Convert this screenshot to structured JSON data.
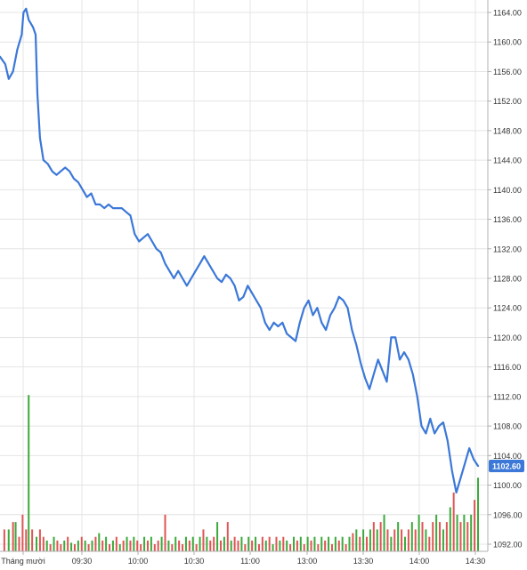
{
  "chart_data": {
    "type": "line",
    "y_ticks": [
      "1164.00",
      "1160.00",
      "1156.00",
      "1152.00",
      "1148.00",
      "1144.00",
      "1140.00",
      "1136.00",
      "1132.00",
      "1128.00",
      "1124.00",
      "1120.00",
      "1116.00",
      "1112.00",
      "1108.00",
      "1104.00",
      "1100.00",
      "1096.00",
      "1092.00"
    ],
    "x_ticks": [
      "Tháng mười",
      "09:30",
      "10:00",
      "10:30",
      "11:00",
      "13:00",
      "13:30",
      "14:00",
      "14:30"
    ],
    "last_value_label": "1102.60",
    "ylim": [
      1090.5,
      1165.5
    ],
    "grid": true,
    "colors": {
      "line": "#3b78d8",
      "up": "#3caa3c",
      "down": "#e05555",
      "grid": "#e4e4e4",
      "axis": "#b0b0b0",
      "label_bg": "#3b78d8"
    },
    "price_series": [
      [
        0,
        1158
      ],
      [
        0.6,
        1157
      ],
      [
        1,
        1155
      ],
      [
        1.5,
        1156
      ],
      [
        2,
        1159
      ],
      [
        2.5,
        1161
      ],
      [
        2.7,
        1164
      ],
      [
        3,
        1164.5
      ],
      [
        3.3,
        1163
      ],
      [
        3.8,
        1162
      ],
      [
        4.1,
        1161
      ],
      [
        4.3,
        1153
      ],
      [
        4.6,
        1147
      ],
      [
        5,
        1144
      ],
      [
        5.5,
        1143.5
      ],
      [
        6,
        1142.5
      ],
      [
        6.5,
        1142
      ],
      [
        7,
        1142.5
      ],
      [
        7.5,
        1143
      ],
      [
        8,
        1142.5
      ],
      [
        8.5,
        1141.5
      ],
      [
        9,
        1141
      ],
      [
        9.5,
        1140
      ],
      [
        10,
        1139
      ],
      [
        10.5,
        1139.5
      ],
      [
        11,
        1138
      ],
      [
        11.5,
        1138
      ],
      [
        12,
        1137.5
      ],
      [
        12.5,
        1138
      ],
      [
        13,
        1137.5
      ],
      [
        13.5,
        1137.5
      ],
      [
        14,
        1137.5
      ],
      [
        14.5,
        1137
      ],
      [
        15,
        1136.5
      ],
      [
        15.5,
        1134
      ],
      [
        16,
        1133
      ],
      [
        16.5,
        1133.5
      ],
      [
        17,
        1134
      ],
      [
        17.5,
        1133
      ],
      [
        18,
        1132
      ],
      [
        18.5,
        1131.5
      ],
      [
        19,
        1130
      ],
      [
        19.5,
        1129
      ],
      [
        20,
        1128
      ],
      [
        20.5,
        1129
      ],
      [
        21,
        1128
      ],
      [
        21.5,
        1127
      ],
      [
        22,
        1128
      ],
      [
        22.5,
        1129
      ],
      [
        23,
        1130
      ],
      [
        23.5,
        1131
      ],
      [
        24,
        1130
      ],
      [
        24.5,
        1129
      ],
      [
        25,
        1128
      ],
      [
        25.5,
        1127.5
      ],
      [
        26,
        1128.5
      ],
      [
        26.5,
        1128
      ],
      [
        27,
        1127
      ],
      [
        27.5,
        1125
      ],
      [
        28,
        1125.5
      ],
      [
        28.5,
        1127
      ],
      [
        29,
        1126
      ],
      [
        29.5,
        1125
      ],
      [
        30,
        1124
      ],
      [
        30.5,
        1122
      ],
      [
        31,
        1121
      ],
      [
        31.5,
        1122
      ],
      [
        32,
        1121.5
      ],
      [
        32.5,
        1122
      ],
      [
        33,
        1120.5
      ],
      [
        33.5,
        1120
      ],
      [
        34,
        1119.5
      ],
      [
        34.5,
        1122
      ],
      [
        35,
        1124
      ],
      [
        35.5,
        1125
      ],
      [
        36,
        1123
      ],
      [
        36.5,
        1124
      ],
      [
        37,
        1122
      ],
      [
        37.5,
        1121
      ],
      [
        38,
        1123
      ],
      [
        38.5,
        1124
      ],
      [
        39,
        1125.5
      ],
      [
        39.5,
        1125
      ],
      [
        40,
        1124
      ],
      [
        40.5,
        1121
      ],
      [
        41,
        1119
      ],
      [
        41.5,
        1116.5
      ],
      [
        42,
        1114.5
      ],
      [
        42.5,
        1113
      ],
      [
        43,
        1115
      ],
      [
        43.5,
        1117
      ],
      [
        44,
        1115.5
      ],
      [
        44.5,
        1114
      ],
      [
        45,
        1120
      ],
      [
        45.5,
        1120
      ],
      [
        46,
        1117
      ],
      [
        46.5,
        1118
      ],
      [
        47,
        1117
      ],
      [
        47.5,
        1115
      ],
      [
        48,
        1112
      ],
      [
        48.5,
        1108
      ],
      [
        49,
        1107
      ],
      [
        49.5,
        1109
      ],
      [
        50,
        1107
      ],
      [
        50.5,
        1108
      ],
      [
        51,
        1108.5
      ],
      [
        51.5,
        1106
      ],
      [
        52,
        1102
      ],
      [
        52.5,
        1099
      ],
      [
        53,
        1101
      ],
      [
        53.5,
        1103
      ],
      [
        54,
        1105
      ],
      [
        54.5,
        1103.5
      ],
      [
        55,
        1102.6
      ]
    ],
    "volume_series": [
      [
        0.5,
        1094,
        "d"
      ],
      [
        1,
        1094,
        "u"
      ],
      [
        1.5,
        1095,
        "d"
      ],
      [
        1.8,
        1095,
        "u"
      ],
      [
        2.2,
        1093,
        "d"
      ],
      [
        2.6,
        1096,
        "d"
      ],
      [
        3,
        1094,
        "d"
      ],
      [
        3.3,
        1112.2,
        "u"
      ],
      [
        3.7,
        1094,
        "d"
      ],
      [
        4.2,
        1093,
        "u"
      ],
      [
        4.6,
        1094,
        "d"
      ],
      [
        5,
        1093,
        "d"
      ],
      [
        5.4,
        1092.5,
        "u"
      ],
      [
        5.8,
        1092,
        "d"
      ],
      [
        6.2,
        1093,
        "u"
      ],
      [
        6.6,
        1092.5,
        "d"
      ],
      [
        7,
        1092,
        "d"
      ],
      [
        7.4,
        1092.5,
        "u"
      ],
      [
        7.8,
        1093,
        "d"
      ],
      [
        8.2,
        1092.2,
        "u"
      ],
      [
        8.6,
        1092,
        "d"
      ],
      [
        9,
        1092.5,
        "u"
      ],
      [
        9.4,
        1093,
        "d"
      ],
      [
        9.8,
        1092.5,
        "u"
      ],
      [
        10.2,
        1092,
        "d"
      ],
      [
        10.6,
        1092.5,
        "u"
      ],
      [
        11,
        1093,
        "d"
      ],
      [
        11.4,
        1093.5,
        "u"
      ],
      [
        11.8,
        1092.5,
        "d"
      ],
      [
        12.2,
        1093,
        "u"
      ],
      [
        12.6,
        1092,
        "d"
      ],
      [
        13,
        1092.5,
        "u"
      ],
      [
        13.4,
        1093,
        "d"
      ],
      [
        13.8,
        1092,
        "u"
      ],
      [
        14.2,
        1092.5,
        "d"
      ],
      [
        14.6,
        1093,
        "u"
      ],
      [
        15,
        1092.5,
        "d"
      ],
      [
        15.4,
        1093,
        "u"
      ],
      [
        15.8,
        1092.5,
        "d"
      ],
      [
        16.2,
        1092,
        "d"
      ],
      [
        16.6,
        1093,
        "u"
      ],
      [
        17,
        1092.5,
        "d"
      ],
      [
        17.4,
        1093,
        "u"
      ],
      [
        17.8,
        1092,
        "d"
      ],
      [
        18.2,
        1092.5,
        "d"
      ],
      [
        18.6,
        1093,
        "u"
      ],
      [
        19,
        1096,
        "d"
      ],
      [
        19.4,
        1092.5,
        "u"
      ],
      [
        19.8,
        1092,
        "d"
      ],
      [
        20.2,
        1093,
        "u"
      ],
      [
        20.6,
        1092.5,
        "d"
      ],
      [
        21,
        1092,
        "d"
      ],
      [
        21.4,
        1093,
        "u"
      ],
      [
        21.8,
        1092.5,
        "d"
      ],
      [
        22.2,
        1093,
        "u"
      ],
      [
        22.6,
        1092,
        "d"
      ],
      [
        23,
        1093,
        "u"
      ],
      [
        23.4,
        1094,
        "d"
      ],
      [
        23.8,
        1093,
        "u"
      ],
      [
        24.2,
        1092.5,
        "d"
      ],
      [
        24.6,
        1093,
        "d"
      ],
      [
        25,
        1095,
        "u"
      ],
      [
        25.4,
        1092.5,
        "d"
      ],
      [
        25.8,
        1093,
        "u"
      ],
      [
        26.2,
        1095,
        "d"
      ],
      [
        26.6,
        1092.5,
        "u"
      ],
      [
        27,
        1093,
        "d"
      ],
      [
        27.4,
        1092.5,
        "d"
      ],
      [
        27.8,
        1093,
        "u"
      ],
      [
        28.2,
        1092,
        "d"
      ],
      [
        28.6,
        1093,
        "u"
      ],
      [
        29,
        1092.5,
        "d"
      ],
      [
        29.4,
        1093,
        "u"
      ],
      [
        29.8,
        1092,
        "d"
      ],
      [
        30.2,
        1093,
        "d"
      ],
      [
        30.6,
        1092.5,
        "u"
      ],
      [
        31,
        1093,
        "d"
      ],
      [
        31.4,
        1092,
        "u"
      ],
      [
        31.8,
        1093,
        "d"
      ],
      [
        32.2,
        1092.5,
        "u"
      ],
      [
        32.6,
        1093,
        "d"
      ],
      [
        33,
        1092.5,
        "u"
      ],
      [
        33.4,
        1092,
        "d"
      ],
      [
        33.8,
        1093,
        "u"
      ],
      [
        34.2,
        1092.5,
        "d"
      ],
      [
        34.6,
        1093,
        "u"
      ],
      [
        35,
        1092,
        "d"
      ],
      [
        35.4,
        1093,
        "u"
      ],
      [
        35.8,
        1092.5,
        "d"
      ],
      [
        36.2,
        1093,
        "u"
      ],
      [
        36.6,
        1092,
        "d"
      ],
      [
        37,
        1093,
        "u"
      ],
      [
        37.4,
        1092.5,
        "d"
      ],
      [
        37.8,
        1093,
        "u"
      ],
      [
        38.2,
        1092,
        "d"
      ],
      [
        38.6,
        1093,
        "u"
      ],
      [
        39,
        1092.5,
        "d"
      ],
      [
        39.4,
        1093,
        "u"
      ],
      [
        39.8,
        1092,
        "d"
      ],
      [
        40.2,
        1093,
        "u"
      ],
      [
        40.6,
        1093.5,
        "d"
      ],
      [
        41,
        1094,
        "u"
      ],
      [
        41.4,
        1093,
        "d"
      ],
      [
        41.8,
        1094,
        "u"
      ],
      [
        42.2,
        1093,
        "d"
      ],
      [
        42.6,
        1094,
        "u"
      ],
      [
        43,
        1095,
        "d"
      ],
      [
        43.4,
        1094,
        "u"
      ],
      [
        43.8,
        1095,
        "d"
      ],
      [
        44.2,
        1096,
        "u"
      ],
      [
        44.6,
        1094,
        "d"
      ],
      [
        45,
        1093,
        "u"
      ],
      [
        45.4,
        1094,
        "d"
      ],
      [
        45.8,
        1095,
        "u"
      ],
      [
        46.2,
        1094,
        "d"
      ],
      [
        46.6,
        1093,
        "u"
      ],
      [
        47,
        1094,
        "d"
      ],
      [
        47.4,
        1095,
        "u"
      ],
      [
        47.8,
        1094,
        "d"
      ],
      [
        48.2,
        1096,
        "u"
      ],
      [
        48.6,
        1095,
        "d"
      ],
      [
        49,
        1094,
        "u"
      ],
      [
        49.4,
        1093,
        "d"
      ],
      [
        49.8,
        1095,
        "d"
      ],
      [
        50.2,
        1096,
        "u"
      ],
      [
        50.6,
        1095,
        "d"
      ],
      [
        51,
        1094,
        "u"
      ],
      [
        51.4,
        1095,
        "d"
      ],
      [
        51.8,
        1097,
        "u"
      ],
      [
        52.2,
        1099,
        "d"
      ],
      [
        52.6,
        1096,
        "u"
      ],
      [
        53,
        1095,
        "d"
      ],
      [
        53.4,
        1096,
        "u"
      ],
      [
        53.8,
        1095,
        "d"
      ],
      [
        54.2,
        1096,
        "u"
      ],
      [
        54.6,
        1098,
        "d"
      ],
      [
        55,
        1101,
        "u"
      ]
    ]
  }
}
